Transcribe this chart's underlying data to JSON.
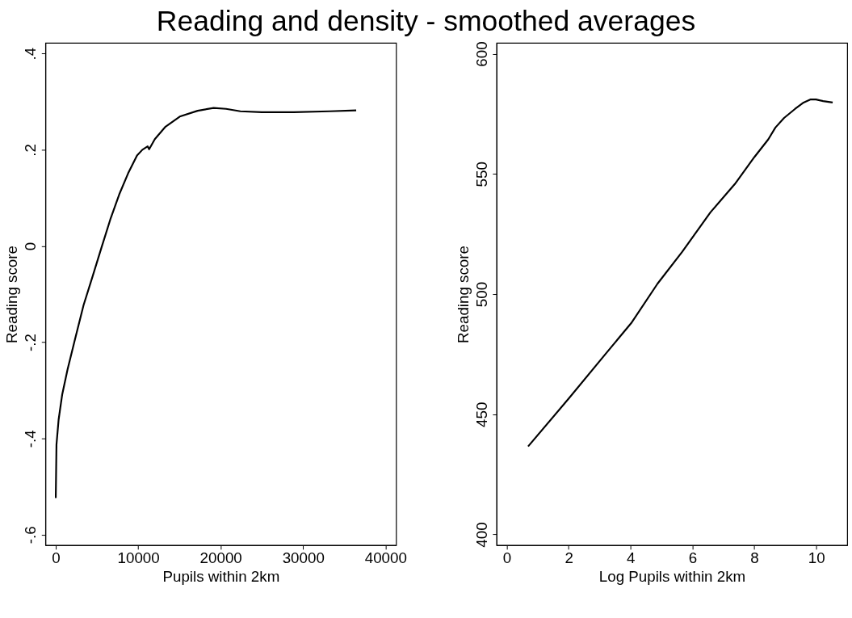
{
  "chart_data": [
    {
      "type": "line",
      "title": "Reading and density - smoothed averages",
      "xlabel": "Pupils within 2km",
      "ylabel": "Reading score",
      "x": [
        0,
        86,
        346,
        778,
        1427,
        2291,
        3372,
        4453,
        5534,
        6615,
        7696,
        8777,
        9857,
        10506,
        11154,
        11327,
        12019,
        13316,
        15045,
        17207,
        19152,
        20666,
        22395,
        24989,
        28881,
        33203,
        36446
      ],
      "series": [
        {
          "color": "#000000",
          "values": [
            -0.524,
            -0.413,
            -0.361,
            -0.309,
            -0.257,
            -0.197,
            -0.123,
            -0.064,
            -0.004,
            0.055,
            0.107,
            0.151,
            0.188,
            0.2,
            0.207,
            0.201,
            0.222,
            0.248,
            0.269,
            0.281,
            0.287,
            0.285,
            0.28,
            0.278,
            0.278,
            0.28,
            0.282
          ]
        }
      ],
      "xlim": [
        -1254,
        41290
      ],
      "xticks": [
        0,
        10000,
        20000,
        30000,
        40000
      ],
      "ylim": [
        -0.622,
        0.422
      ],
      "yticks": [
        {
          "value": -0.6,
          "label": "-.6"
        },
        {
          "value": -0.4,
          "label": "-.4"
        },
        {
          "value": -0.2,
          "label": "-.2"
        },
        0,
        {
          "value": 0.2,
          "label": ".2"
        },
        {
          "value": 0.4,
          "label": ".4"
        }
      ],
      "grid": false,
      "marker": "none",
      "line_style": "solid"
    },
    {
      "type": "line",
      "xlabel": "Log Pupils within 2km",
      "ylabel": "Reading score",
      "x": [
        0.69,
        2.02,
        3.16,
        4.02,
        4.87,
        5.67,
        6.58,
        7.37,
        8.0,
        8.45,
        8.68,
        8.96,
        9.31,
        9.59,
        9.82,
        9.99,
        10.22,
        10.53
      ],
      "series": [
        {
          "color": "#000000",
          "values": [
            436.6,
            456.8,
            474.6,
            487.9,
            504.3,
            517.6,
            534.0,
            545.8,
            557.0,
            564.4,
            569.3,
            573.3,
            577.0,
            579.7,
            581.0,
            581.0,
            580.3,
            579.7
          ]
        }
      ],
      "xlim": [
        -0.33,
        11
      ],
      "xticks": [
        0,
        2,
        4,
        6,
        8,
        10
      ],
      "ylim": [
        395.5,
        604.5
      ],
      "yticks": [
        400,
        450,
        500,
        550,
        600
      ],
      "grid": false,
      "marker": "none",
      "line_style": "solid"
    }
  ]
}
